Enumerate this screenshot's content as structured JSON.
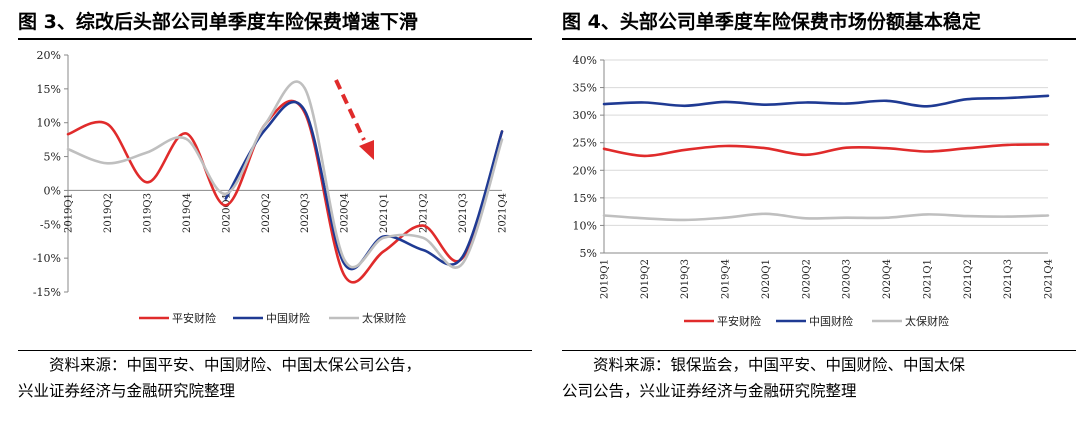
{
  "left": {
    "title": "图 3、综改后头部公司单季度车险保费增速下滑",
    "source_line1": "资料来源：中国平安、中国财险、中国太保公司公告，",
    "source_line2": "兴业证券经济与金融研究院整理"
  },
  "right": {
    "title": "图 4、头部公司单季度车险保费市场份额基本稳定",
    "source_line1": "资料来源：银保监会，中国平安、中国财险、中国太保",
    "source_line2": "公司公告，兴业证券经济与金融研究院整理"
  },
  "chart_data": [
    {
      "type": "line",
      "title": "综改后头部公司单季度车险保费增速下滑",
      "categories": [
        "2019Q1",
        "2019Q2",
        "2019Q3",
        "2019Q4",
        "2020Q1",
        "2020Q2",
        "2020Q3",
        "2020Q4",
        "2021Q1",
        "2021Q2",
        "2021Q3",
        "2021Q4"
      ],
      "series": [
        {
          "name": "平安财险",
          "color": "#e02b2b",
          "values": [
            8.3,
            9.8,
            1.2,
            8.4,
            -2.2,
            9.8,
            11.5,
            -12.5,
            -9.0,
            -5.2,
            -10.0,
            8.7
          ]
        },
        {
          "name": "中国财险",
          "color": "#1f3a93",
          "values": [
            null,
            null,
            null,
            null,
            -1.2,
            9.0,
            11.8,
            -10.8,
            -6.8,
            -8.8,
            -9.8,
            8.7
          ]
        },
        {
          "name": "太保财险",
          "color": "#bfbfbf",
          "values": [
            6.1,
            4.0,
            5.6,
            7.6,
            -0.5,
            9.8,
            15.1,
            -10.2,
            -7.0,
            -7.0,
            -10.8,
            7.5
          ]
        }
      ],
      "ylim": [
        -15,
        20
      ],
      "yticks": [
        -15,
        -10,
        -5,
        0,
        5,
        10,
        15,
        20
      ],
      "ytick_labels": [
        "-15%",
        "-10%",
        "-5%",
        "0%",
        "5%",
        "10%",
        "15%",
        "20%"
      ],
      "xlabel": "",
      "ylabel": "",
      "legend": "bottom",
      "annotation": "red dashed downward arrow",
      "grid": false
    },
    {
      "type": "line",
      "title": "头部公司单季度车险保费市场份额基本稳定",
      "categories": [
        "2019Q1",
        "2019Q2",
        "2019Q3",
        "2019Q4",
        "2020Q1",
        "2020Q2",
        "2020Q3",
        "2020Q4",
        "2021Q1",
        "2021Q2",
        "2021Q3",
        "2021Q4"
      ],
      "series": [
        {
          "name": "平安财险",
          "color": "#e02b2b",
          "values": [
            23.9,
            22.6,
            23.7,
            24.4,
            24.0,
            22.8,
            24.1,
            24.0,
            23.4,
            24.0,
            24.6,
            24.7
          ]
        },
        {
          "name": "中国财险",
          "color": "#1f3a93",
          "values": [
            32.0,
            32.3,
            31.7,
            32.4,
            31.9,
            32.3,
            32.1,
            32.6,
            31.6,
            32.9,
            33.1,
            33.5
          ]
        },
        {
          "name": "太保财险",
          "color": "#bfbfbf",
          "values": [
            11.8,
            11.3,
            11.0,
            11.4,
            12.1,
            11.3,
            11.4,
            11.4,
            12.0,
            11.7,
            11.6,
            11.8
          ]
        }
      ],
      "ylim": [
        5,
        40
      ],
      "yticks": [
        5,
        10,
        15,
        20,
        25,
        30,
        35,
        40
      ],
      "ytick_labels": [
        "5%",
        "10%",
        "15%",
        "20%",
        "25%",
        "30%",
        "35%",
        "40%"
      ],
      "xlabel": "",
      "ylabel": "",
      "legend": "bottom",
      "grid": true
    }
  ]
}
